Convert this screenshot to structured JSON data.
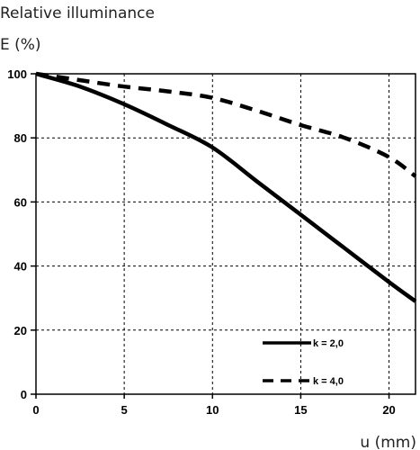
{
  "chart_data": {
    "type": "line",
    "title": "Relative illuminance",
    "ylabel": "E (%)",
    "xlabel": "u (mm)",
    "xlim": [
      0,
      21.5
    ],
    "ylim": [
      0,
      100
    ],
    "x_ticks": [
      0,
      5,
      10,
      15,
      20
    ],
    "y_ticks": [
      0,
      20,
      40,
      60,
      80,
      100
    ],
    "grid": true,
    "legend_position": "bottom-right",
    "series": [
      {
        "name": "k = 2,0",
        "style": "solid",
        "color": "#000000",
        "x": [
          0,
          2.5,
          5,
          7.5,
          10,
          12.5,
          15,
          17.5,
          20,
          21.5
        ],
        "y": [
          100,
          96,
          90.5,
          84,
          77,
          66.5,
          56,
          45.5,
          35,
          29
        ]
      },
      {
        "name": "k = 4,0",
        "style": "dashed",
        "color": "#000000",
        "x": [
          0,
          2.5,
          5,
          7.5,
          10,
          12.5,
          15,
          17.5,
          20,
          21.5
        ],
        "y": [
          100,
          98,
          96,
          94.5,
          92.5,
          88.5,
          84,
          80,
          74,
          68
        ]
      }
    ]
  }
}
